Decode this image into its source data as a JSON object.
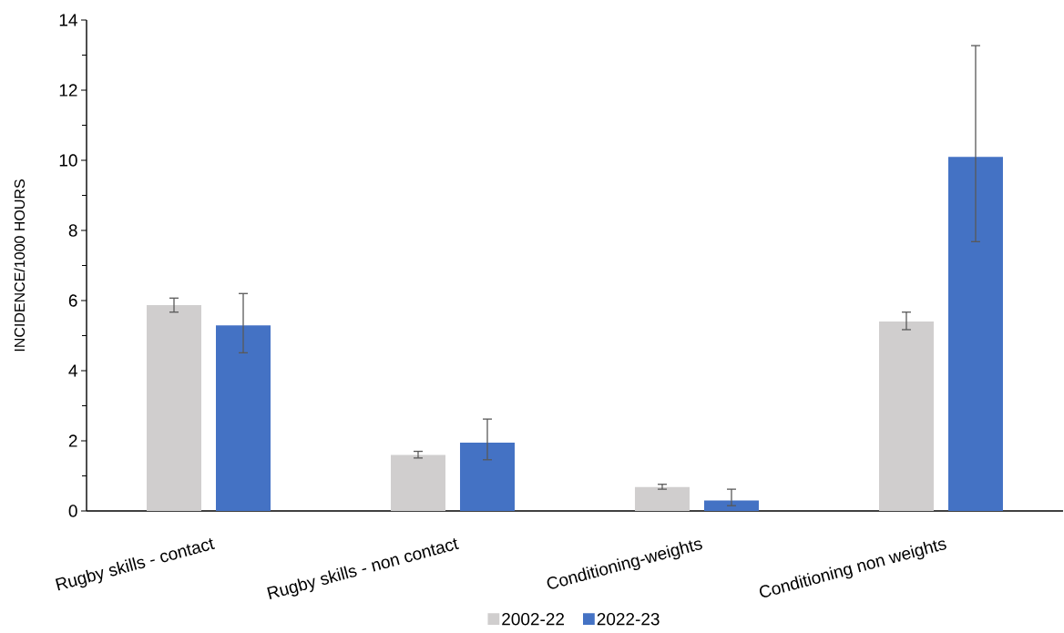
{
  "chart_data": {
    "type": "bar",
    "ylabel": "INCIDENCE/1000 HOURS",
    "categories": [
      "Rugby skills - contact",
      "Rugby skills - non contact",
      "Conditioning-weights",
      "Conditioning non weights"
    ],
    "series": [
      {
        "name": "2002-22",
        "color": "#d0cece",
        "values": [
          5.87,
          1.6,
          0.68,
          5.4
        ],
        "errors": [
          [
            5.67,
            6.07
          ],
          [
            1.51,
            1.7
          ],
          [
            0.62,
            0.76
          ],
          [
            5.17,
            5.67
          ]
        ]
      },
      {
        "name": "2022-23",
        "color": "#4472c4",
        "values": [
          5.29,
          1.95,
          0.3,
          10.1
        ],
        "errors": [
          [
            4.51,
            6.2
          ],
          [
            1.46,
            2.62
          ],
          [
            0.15,
            0.62
          ],
          [
            7.68,
            13.27
          ]
        ]
      }
    ],
    "ylim": [
      0,
      14
    ],
    "yticks": [
      0,
      2,
      4,
      6,
      8,
      10,
      12,
      14
    ],
    "grid": false,
    "legend": "bottom"
  }
}
